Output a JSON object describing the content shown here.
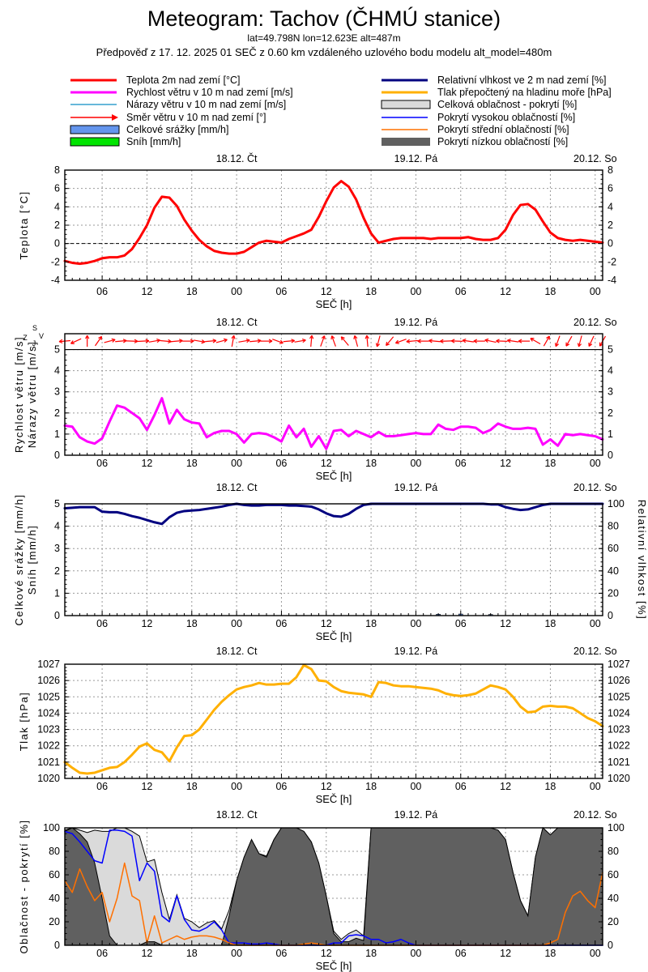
{
  "header": {
    "title": "Meteogram: Tachov (ČHMÚ stanice)",
    "subtitle1": "lat=49.798N lon=12.623E alt=487m",
    "subtitle2": "Předpověď z 17. 12. 2025 01 SEČ z 0.60 km vzdáleného uzlového bodu modelu alt_model=480m"
  },
  "legend": {
    "left": [
      {
        "label": "Teplota 2m nad zemí [°C]",
        "color": "#ff0000",
        "type": "line",
        "weight": 3
      },
      {
        "label": "Rychlost větru v 10 m nad zemí [m/s]",
        "color": "#ff00ff",
        "type": "line",
        "weight": 3
      },
      {
        "label": "Nárazy větru v 10 m nad zemí [m/s]",
        "color": "#35a0ce",
        "type": "line",
        "weight": 1.5
      },
      {
        "label": "Směr větru v 10 m nad zemí [°]",
        "color": "#ff0000",
        "type": "arrow",
        "weight": 1.5
      },
      {
        "label": "Celkové srážky [mm/h]",
        "color": "#6495ed",
        "type": "box",
        "border": true
      },
      {
        "label": "Sníh [mm/h]",
        "color": "#00e400",
        "type": "box",
        "border": true
      }
    ],
    "right": [
      {
        "label": "Relativní vlhkost ve 2 m nad zemí [%]",
        "color": "#000080",
        "type": "line",
        "weight": 3
      },
      {
        "label": "Tlak přepočtený na hladinu moře [hPa]",
        "color": "#ffb000",
        "type": "line",
        "weight": 3
      },
      {
        "label": "Celková oblačnost - pokrytí [%]",
        "color": "#dadada",
        "type": "box",
        "border": true
      },
      {
        "label": "Pokrytí vysokou oblačností [%]",
        "color": "#0000ff",
        "type": "line",
        "weight": 1.5
      },
      {
        "label": "Pokrytí střední oblačností [%]",
        "color": "#ff7000",
        "type": "line",
        "weight": 1.5
      },
      {
        "label": "Pokrytí nízkou oblačností [%]",
        "color": "#606060",
        "type": "box",
        "border": false
      }
    ]
  },
  "axis": {
    "xlabel": "SEČ [h]",
    "x_start_hour": 1,
    "x_end_hour": 73,
    "major_ticks": [
      6,
      12,
      18,
      24,
      30,
      36,
      42,
      48,
      54,
      60,
      66,
      72
    ],
    "major_labels": [
      "06",
      "12",
      "18",
      "00",
      "06",
      "12",
      "18",
      "00",
      "06",
      "12",
      "18",
      "00"
    ],
    "day_labels": [
      {
        "hour": 24,
        "label": "18.12. Čt"
      },
      {
        "hour": 48,
        "label": "19.12. Pá"
      },
      {
        "hour": 72,
        "label": "20.12. So"
      }
    ]
  },
  "chart_data": [
    {
      "key": "temperature",
      "type": "line",
      "ylabel": [
        "Teplota [°C]"
      ],
      "ylim": [
        -4,
        8
      ],
      "yticks": [
        -4,
        -2,
        0,
        2,
        4,
        6,
        8
      ],
      "yminor": 0.5,
      "zero_line": 0,
      "series": [
        {
          "name": "Teplota 2m nad zemí [°C]",
          "color": "#ff0000",
          "width": 3,
          "values": [
            -1.9,
            -2.1,
            -2.2,
            -2.1,
            -1.9,
            -1.6,
            -1.5,
            -1.5,
            -1.3,
            -0.6,
            0.6,
            2.0,
            3.9,
            5.1,
            5.0,
            4.1,
            2.6,
            1.4,
            0.4,
            -0.3,
            -0.8,
            -1.0,
            -1.1,
            -1.1,
            -0.9,
            -0.4,
            0.1,
            0.3,
            0.2,
            0.1,
            0.5,
            0.8,
            1.1,
            1.5,
            2.9,
            4.6,
            6.1,
            6.8,
            6.2,
            4.8,
            2.8,
            1.1,
            0.1,
            0.3,
            0.5,
            0.6,
            0.6,
            0.6,
            0.6,
            0.5,
            0.6,
            0.6,
            0.6,
            0.6,
            0.7,
            0.5,
            0.4,
            0.4,
            0.6,
            1.5,
            3.1,
            4.2,
            4.3,
            3.7,
            2.4,
            1.2,
            0.6,
            0.4,
            0.3,
            0.4,
            0.3,
            0.2,
            0.1
          ]
        }
      ]
    },
    {
      "key": "wind",
      "type": "line",
      "ylabel": [
        "Rychlost větru [m/s]",
        "Nárazy větru [m/s]"
      ],
      "ylim": [
        0,
        5.75
      ],
      "yticks": [
        0,
        1,
        2,
        3,
        4,
        5
      ],
      "yminor": 0.25,
      "hline": 5,
      "compass": {
        "n": "S",
        "e": "V",
        "s": "J",
        "w": "Z"
      },
      "arrows": {
        "color": "#ff0000",
        "value": 5.4,
        "hours": [
          1,
          2.5,
          4,
          5.5,
          7,
          8.5,
          10,
          11.5,
          13,
          14.5,
          16,
          17.5,
          19,
          20.5,
          22,
          23.5,
          25,
          26.5,
          28,
          29.5,
          31,
          32.5,
          34,
          35.5,
          37,
          38.5,
          40,
          41.5,
          43,
          44.5,
          46,
          47.5,
          49,
          50.5,
          52,
          53.5,
          55,
          56.5,
          58,
          59.5,
          61,
          62.5,
          64,
          65.5,
          67,
          68.5,
          70,
          71.5,
          73
        ],
        "angles_deg": [
          185,
          205,
          90,
          55,
          15,
          5,
          358,
          3,
          10,
          355,
          5,
          0,
          350,
          5,
          15,
          80,
          10,
          5,
          0,
          340,
          5,
          10,
          85,
          70,
          110,
          130,
          105,
          95,
          255,
          230,
          200,
          185,
          180,
          175,
          182,
          178,
          172,
          180,
          168,
          178,
          172,
          180,
          150,
          60,
          250,
          240,
          255,
          245,
          240
        ]
      },
      "series": [
        {
          "name": "Nárazy větru v 10 m nad zemí [m/s]",
          "color": "#35a0ce",
          "width": 1.5,
          "values": [
            1.4,
            1.35,
            0.85,
            0.65,
            0.55,
            0.8,
            1.6,
            2.35,
            2.25,
            2.0,
            1.75,
            1.2,
            1.9,
            2.7,
            1.5,
            2.15,
            1.7,
            1.55,
            1.5,
            0.85,
            1.05,
            1.15,
            1.15,
            1.0,
            0.6,
            1.0,
            1.05,
            1.0,
            0.85,
            0.65,
            1.4,
            0.85,
            1.25,
            0.4,
            0.9,
            0.3,
            1.15,
            1.2,
            0.9,
            1.15,
            1.0,
            0.85,
            1.1,
            0.9,
            0.9,
            0.95,
            1.0,
            1.05,
            1.0,
            1.0,
            1.45,
            1.25,
            1.2,
            1.35,
            1.35,
            1.3,
            1.05,
            1.2,
            1.5,
            1.35,
            1.25,
            1.25,
            1.3,
            1.25,
            0.5,
            0.75,
            0.45,
            1.0,
            0.95,
            1.0,
            0.95,
            0.9,
            0.75
          ]
        },
        {
          "name": "Rychlost větru v 10 m nad zemí [m/s]",
          "color": "#ff00ff",
          "width": 3,
          "values": [
            1.4,
            1.35,
            0.85,
            0.65,
            0.55,
            0.8,
            1.6,
            2.35,
            2.25,
            2.0,
            1.75,
            1.2,
            1.9,
            2.7,
            1.5,
            2.15,
            1.7,
            1.55,
            1.5,
            0.85,
            1.05,
            1.15,
            1.15,
            1.0,
            0.6,
            1.0,
            1.05,
            1.0,
            0.85,
            0.65,
            1.4,
            0.85,
            1.25,
            0.4,
            0.9,
            0.3,
            1.15,
            1.2,
            0.9,
            1.15,
            1.0,
            0.85,
            1.1,
            0.9,
            0.9,
            0.95,
            1.0,
            1.05,
            1.0,
            1.0,
            1.45,
            1.25,
            1.2,
            1.35,
            1.35,
            1.3,
            1.05,
            1.2,
            1.5,
            1.35,
            1.25,
            1.25,
            1.3,
            1.25,
            0.5,
            0.75,
            0.45,
            1.0,
            0.95,
            1.0,
            0.95,
            0.9,
            0.75
          ]
        }
      ]
    },
    {
      "key": "precip_humidity",
      "type": "mixed",
      "ylabel": [
        "Celkové srážky [mm/h]",
        "Sníh [mm/h]"
      ],
      "ylim": [
        0,
        5
      ],
      "yticks": [
        0,
        1,
        2,
        3,
        4,
        5
      ],
      "yminor": 0.2,
      "y2label": "Relativní vlhkost [%]",
      "y2lim": [
        0,
        100
      ],
      "y2ticks": [
        0,
        20,
        40,
        60,
        80,
        100
      ],
      "bar_color": "#6495ed",
      "bars": [
        {
          "hour": 51,
          "value": 0.06
        },
        {
          "hour": 54,
          "value": 0.07
        },
        {
          "hour": 58,
          "value": 0.05
        }
      ],
      "series": [
        {
          "name": "Relativní vlhkost ve 2 m nad zemí [%]",
          "color": "#000080",
          "width": 3,
          "axis": "y2",
          "values": [
            96,
            96.5,
            97,
            97,
            97,
            93,
            92.5,
            92.5,
            91,
            89,
            87.5,
            85.5,
            83.5,
            82,
            88,
            92,
            93.5,
            94,
            94.5,
            95.5,
            96.5,
            97.5,
            99,
            100,
            99,
            98.5,
            98.5,
            99,
            99,
            99,
            98.5,
            98.5,
            98,
            97.5,
            95,
            91.5,
            89,
            88.5,
            91,
            95.5,
            99,
            100,
            100,
            100,
            100,
            100,
            100,
            100,
            100,
            100,
            100,
            100,
            100,
            100,
            100,
            100,
            100,
            99.5,
            99.5,
            97,
            95.5,
            94.5,
            95,
            97,
            99,
            100,
            100,
            100,
            100,
            100,
            100,
            100,
            100
          ]
        }
      ]
    },
    {
      "key": "pressure",
      "type": "line",
      "ylabel": [
        "Tlak [hPa]"
      ],
      "ylim": [
        1020,
        1027
      ],
      "yticks": [
        1020,
        1021,
        1022,
        1023,
        1024,
        1025,
        1026,
        1027
      ],
      "yminor": 0.2,
      "series": [
        {
          "name": "Tlak přepočtený na hladinu moře [hPa]",
          "color": "#ffb000",
          "width": 3,
          "values": [
            1021.0,
            1020.65,
            1020.35,
            1020.3,
            1020.35,
            1020.5,
            1020.65,
            1020.7,
            1021.0,
            1021.45,
            1021.95,
            1022.15,
            1021.75,
            1021.6,
            1021.05,
            1021.9,
            1022.6,
            1022.65,
            1023.0,
            1023.6,
            1024.2,
            1024.7,
            1025.1,
            1025.45,
            1025.6,
            1025.7,
            1025.85,
            1025.75,
            1025.75,
            1025.8,
            1025.8,
            1026.2,
            1026.95,
            1026.7,
            1026.0,
            1025.95,
            1025.6,
            1025.35,
            1025.25,
            1025.2,
            1025.15,
            1025.0,
            1025.9,
            1025.85,
            1025.7,
            1025.65,
            1025.65,
            1025.6,
            1025.55,
            1025.5,
            1025.4,
            1025.2,
            1025.1,
            1025.05,
            1025.1,
            1025.2,
            1025.45,
            1025.7,
            1025.6,
            1025.45,
            1025.0,
            1024.4,
            1024.05,
            1024.1,
            1024.4,
            1024.45,
            1024.4,
            1024.4,
            1024.3,
            1024.0,
            1023.7,
            1023.5,
            1023.2
          ]
        }
      ]
    },
    {
      "key": "cloud",
      "type": "area",
      "ylabel": [
        "Oblačnost - pokrytí [%]"
      ],
      "ylim": [
        0,
        100
      ],
      "yticks": [
        0,
        20,
        40,
        60,
        80,
        100
      ],
      "yminor": 5,
      "series": [
        {
          "name": "Celková oblačnost - pokrytí [%]",
          "kind": "area",
          "fill": "#dadada",
          "stroke": "#000000",
          "values": [
            98,
            100,
            98,
            96,
            98,
            97,
            97,
            100,
            100,
            97,
            93,
            71,
            73,
            45,
            22,
            43,
            23,
            20,
            15,
            19,
            21,
            14,
            30,
            55,
            75,
            90,
            78,
            76,
            90,
            100,
            100,
            100,
            97,
            88,
            70,
            42,
            12,
            5,
            10,
            13,
            8,
            100,
            100,
            100,
            100,
            100,
            100,
            100,
            100,
            100,
            100,
            100,
            100,
            100,
            100,
            100,
            100,
            100,
            98,
            90,
            62,
            38,
            25,
            75,
            100,
            94,
            100,
            100,
            100,
            100,
            100,
            100,
            100
          ]
        },
        {
          "name": "Pokrytí nízkou oblačností [%]",
          "kind": "area",
          "fill": "#606060",
          "stroke": "#000000",
          "values": [
            97,
            100,
            95,
            88,
            70,
            40,
            8,
            0,
            0,
            0,
            0,
            3,
            3,
            0,
            0,
            0,
            0,
            0,
            0,
            0,
            0,
            0,
            25,
            55,
            75,
            90,
            78,
            75,
            90,
            100,
            100,
            100,
            97,
            88,
            70,
            42,
            10,
            3,
            3,
            6,
            4,
            100,
            100,
            100,
            100,
            100,
            100,
            100,
            100,
            100,
            100,
            100,
            100,
            100,
            100,
            100,
            100,
            100,
            98,
            90,
            62,
            38,
            25,
            75,
            100,
            94,
            100,
            100,
            100,
            100,
            100,
            100,
            100
          ]
        },
        {
          "name": "Pokrytí vysokou oblačností [%]",
          "kind": "line",
          "color": "#0000ff",
          "width": 1.5,
          "values": [
            97,
            95,
            88,
            80,
            72,
            70,
            98,
            98,
            97,
            93,
            55,
            70,
            63,
            25,
            20,
            42,
            22,
            13,
            12,
            15,
            20,
            13,
            2,
            2,
            2,
            1,
            1,
            2,
            1,
            0,
            0,
            0,
            0,
            0,
            0,
            0,
            2,
            2,
            8,
            9,
            8,
            5,
            5,
            2,
            3,
            5,
            2,
            0,
            0,
            0,
            0,
            0,
            0,
            0,
            0,
            0,
            0,
            0,
            0,
            0,
            0,
            0,
            0,
            0,
            0,
            0,
            0,
            0,
            0,
            0,
            0,
            0,
            0
          ]
        },
        {
          "name": "Pokrytí střední oblačností [%]",
          "kind": "line",
          "color": "#ff7000",
          "width": 1.5,
          "values": [
            55,
            45,
            65,
            50,
            38,
            45,
            20,
            40,
            70,
            42,
            38,
            2,
            25,
            2,
            5,
            8,
            5,
            7,
            8,
            8,
            7,
            5,
            2,
            0,
            0,
            0,
            0,
            0,
            0,
            0,
            0,
            0,
            1,
            2,
            1,
            0,
            0,
            0,
            0,
            0,
            0,
            0,
            0,
            0,
            0,
            0,
            0,
            0,
            0,
            0,
            0,
            0,
            0,
            0,
            0,
            0,
            0,
            0,
            0,
            0,
            0,
            0,
            0,
            0,
            0,
            2,
            5,
            28,
            42,
            46,
            38,
            32,
            62
          ]
        }
      ]
    }
  ]
}
